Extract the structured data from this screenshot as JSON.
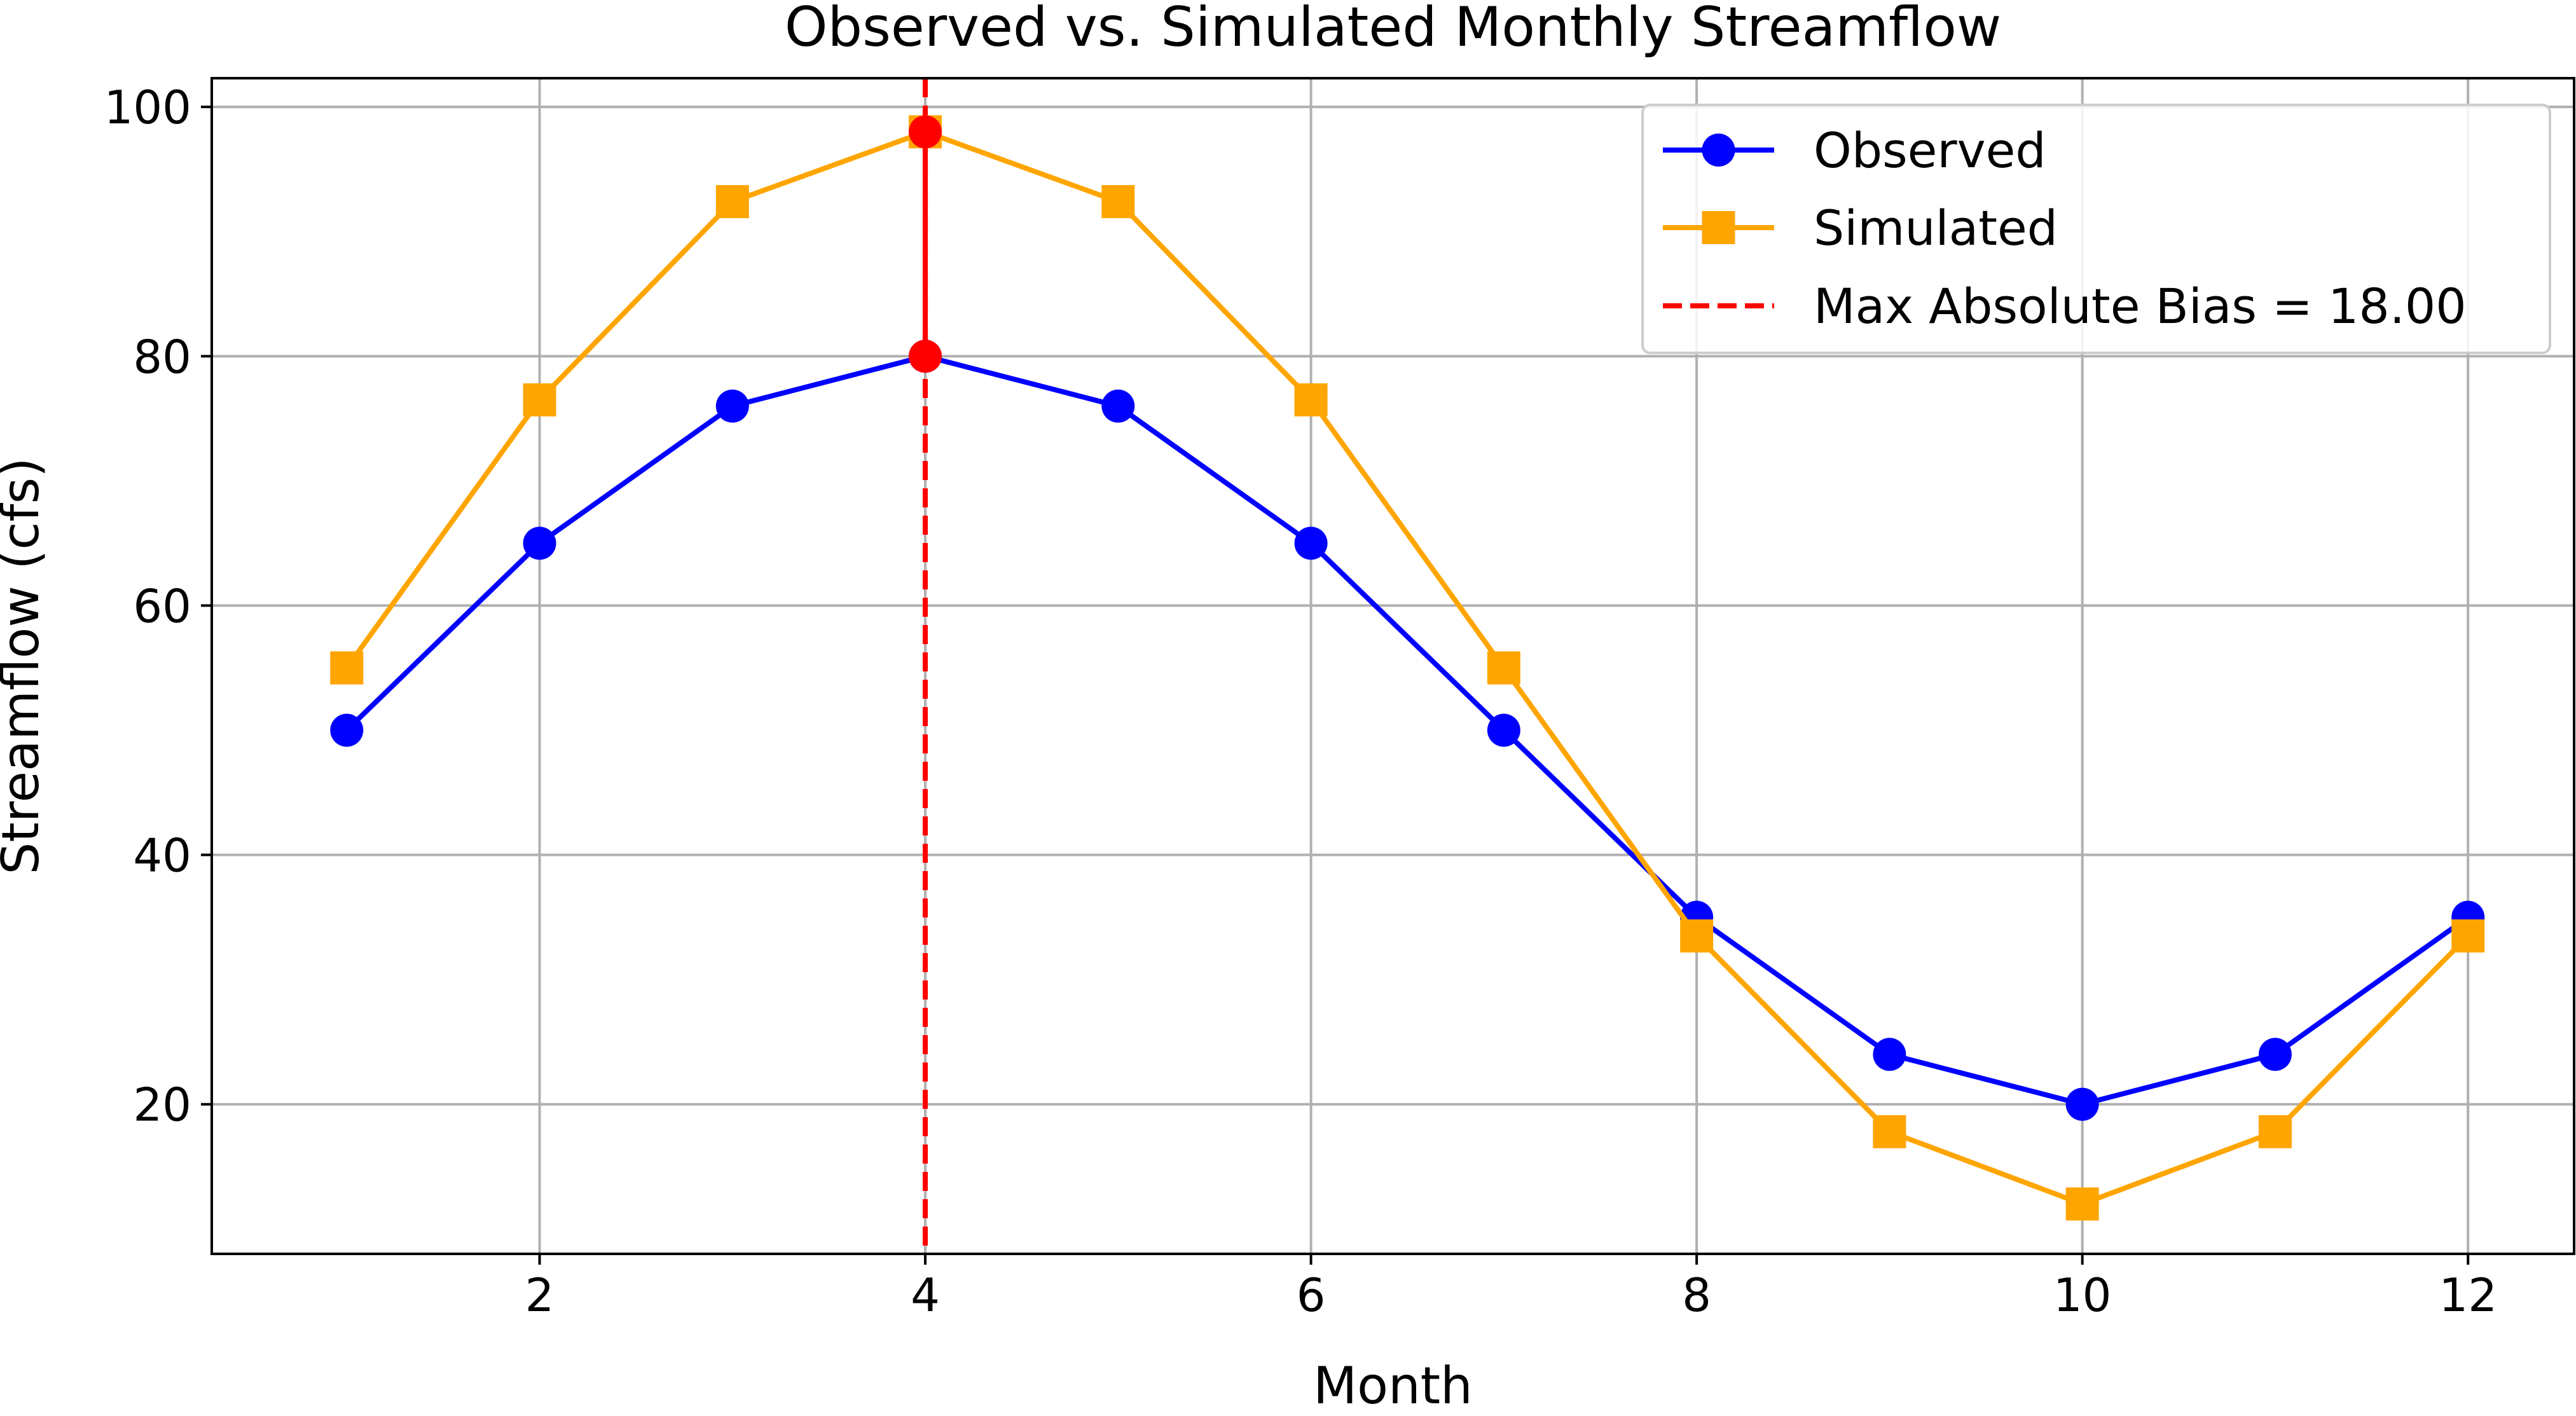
{
  "chart_data": {
    "type": "line",
    "title": "Observed vs. Simulated Monthly Streamflow",
    "xlabel": "Month",
    "ylabel": "Streamflow (cfs)",
    "xlim": [
      0.3,
      12.55
    ],
    "ylim": [
      8,
      102.3
    ],
    "xticks": [
      2,
      4,
      6,
      8,
      10,
      12
    ],
    "yticks": [
      20,
      40,
      60,
      80,
      100
    ],
    "grid": true,
    "legend_position": "top-right",
    "x": [
      1,
      2,
      3,
      4,
      5,
      6,
      7,
      8,
      9,
      10,
      11,
      12
    ],
    "series": [
      {
        "name": "Observed",
        "color": "#0000ff",
        "marker": "circle",
        "values": [
          50,
          65,
          76,
          80,
          76,
          65,
          50,
          35,
          24,
          20,
          24,
          35
        ]
      },
      {
        "name": "Simulated",
        "color": "#ffa500",
        "marker": "square",
        "values": [
          55,
          76.5,
          92.4,
          98,
          92.4,
          76.5,
          55,
          33.5,
          17.8,
          12,
          17.8,
          33.5
        ]
      }
    ],
    "annotations": [
      {
        "label": "Max Absolute Bias = 18.00",
        "type": "vertical-dashed-line",
        "color": "#ff0000",
        "x": 4,
        "highlight_points": [
          98,
          80
        ]
      }
    ]
  }
}
